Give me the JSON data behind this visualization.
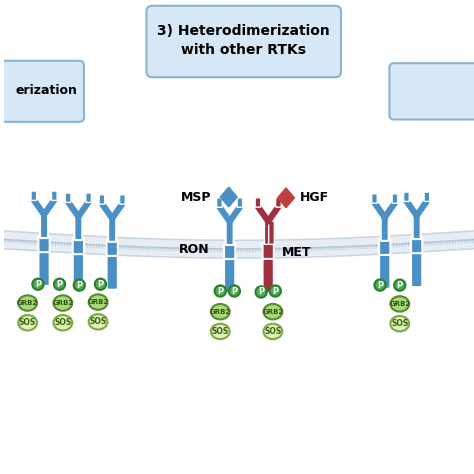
{
  "title": "3) Heterodimerization\nwith other RTKs",
  "title_box_color": "#d6e8f5",
  "title_border_color": "#8ab4d4",
  "background_color": "#ffffff",
  "membrane_color": "#b0c4d8",
  "ron_color": "#4a90c4",
  "met_color": "#a03040",
  "msp_color": "#4a90c4",
  "hgf_color": "#c04040",
  "p_circle_color": "#4caf50",
  "p_circle_border": "#2e7d32",
  "grb2_color": "#a8d878",
  "grb2_border": "#5a8a30",
  "sos_color": "#dff0b8",
  "sos_border": "#7aaa40",
  "left_box_color": "#d6e8f5",
  "left_box_border": "#8ab4d4",
  "right_box_color": "#d6e8f5",
  "right_box_border": "#8ab4d4",
  "label_ron": "RON",
  "label_met": "MET",
  "label_msp": "MSP",
  "label_hgf": "HGF",
  "label_p": "P",
  "label_grb2": "GRB2",
  "label_sos": "SOS",
  "label_left_partial": "erization",
  "figsize": [
    4.74,
    4.74
  ],
  "dpi": 100
}
